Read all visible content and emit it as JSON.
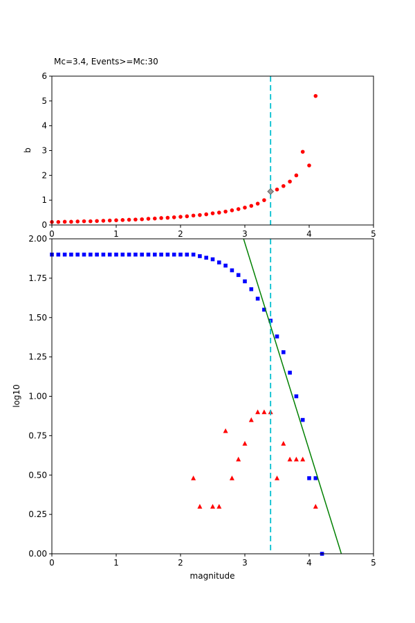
{
  "figure": {
    "title": "Mc=3.4, Events>=Mc:30",
    "xlabel": "magnitude",
    "ylabel_top": "b",
    "ylabel_bottom": "log10",
    "background_color": "#ffffff",
    "colors": {
      "b_curve": "#ff0000",
      "cumulative": "#0000ff",
      "incremental": "#ff0000",
      "fit_line": "#008000",
      "mc_line": "#00bfcf",
      "mc_marker": "#999999"
    }
  },
  "chart_data": [
    {
      "type": "scatter",
      "name": "b-value-vs-cutoff-plot",
      "title": "Mc=3.4, Events>=Mc:30",
      "xlabel": "",
      "ylabel": "b",
      "xlim": [
        0,
        5
      ],
      "ylim": [
        0,
        6
      ],
      "xticks": [
        0,
        1,
        2,
        3,
        4,
        5
      ],
      "yticks": [
        0,
        1,
        2,
        3,
        4,
        5,
        6
      ],
      "xtick_decimals": 0,
      "ytick_decimals": 0,
      "grid": false,
      "vline": {
        "x": 3.4,
        "color": "#00bfcf",
        "style": "dashed",
        "layer": "below"
      },
      "series": [
        {
          "name": "b-values",
          "marker": "circle",
          "color": "#ff0000",
          "x": [
            0,
            0.1,
            0.2,
            0.3,
            0.4,
            0.5,
            0.6,
            0.7,
            0.8,
            0.9,
            1,
            1.1,
            1.2,
            1.3,
            1.4,
            1.5,
            1.6,
            1.7,
            1.8,
            1.9,
            2,
            2.1,
            2.2,
            2.3,
            2.4,
            2.5,
            2.6,
            2.7,
            2.8,
            2.9,
            3,
            3.1,
            3.2,
            3.3,
            3.4,
            3.5,
            3.6,
            3.7,
            3.8,
            3.9,
            4,
            4.1
          ],
          "y": [
            0.12,
            0.12,
            0.13,
            0.13,
            0.14,
            0.15,
            0.15,
            0.16,
            0.17,
            0.18,
            0.19,
            0.2,
            0.21,
            0.22,
            0.23,
            0.25,
            0.26,
            0.28,
            0.29,
            0.31,
            0.33,
            0.35,
            0.38,
            0.4,
            0.43,
            0.47,
            0.5,
            0.54,
            0.59,
            0.64,
            0.7,
            0.77,
            0.86,
            1,
            1.35,
            1.43,
            1.57,
            1.75,
            2,
            2.95,
            2.4,
            5.2
          ]
        },
        {
          "name": "mc-b-marker",
          "marker": "diamond",
          "color": "#999999",
          "x": [
            3.4
          ],
          "y": [
            1.35
          ]
        }
      ]
    },
    {
      "type": "scatter",
      "name": "frequency-magnitude-plot",
      "title": "",
      "xlabel": "magnitude",
      "ylabel": "log10",
      "xlim": [
        0,
        5
      ],
      "ylim": [
        0,
        2
      ],
      "xticks": [
        0,
        1,
        2,
        3,
        4,
        5
      ],
      "yticks": [
        0,
        0.25,
        0.5,
        0.75,
        1,
        1.25,
        1.5,
        1.75,
        2
      ],
      "xtick_decimals": 0,
      "ytick_decimals": 2,
      "grid": false,
      "vline": {
        "x": 3.4,
        "color": "#00bfcf",
        "style": "dashed",
        "layer": "above"
      },
      "series": [
        {
          "name": "cumulative-counts",
          "marker": "square",
          "color": "#0000ff",
          "x": [
            0,
            0.1,
            0.2,
            0.3,
            0.4,
            0.5,
            0.6,
            0.7,
            0.8,
            0.9,
            1,
            1.1,
            1.2,
            1.3,
            1.4,
            1.5,
            1.6,
            1.7,
            1.8,
            1.9,
            2,
            2.1,
            2.2,
            2.3,
            2.4,
            2.5,
            2.6,
            2.7,
            2.8,
            2.9,
            3,
            3.1,
            3.2,
            3.3,
            3.4,
            3.5,
            3.6,
            3.7,
            3.8,
            3.9,
            4,
            4.1,
            4.2
          ],
          "y": [
            1.9,
            1.9,
            1.9,
            1.9,
            1.9,
            1.9,
            1.9,
            1.9,
            1.9,
            1.9,
            1.9,
            1.9,
            1.9,
            1.9,
            1.9,
            1.9,
            1.9,
            1.9,
            1.9,
            1.9,
            1.9,
            1.9,
            1.9,
            1.89,
            1.88,
            1.87,
            1.85,
            1.83,
            1.8,
            1.77,
            1.73,
            1.68,
            1.62,
            1.55,
            1.48,
            1.38,
            1.28,
            1.15,
            1,
            0.85,
            0.48,
            0.48,
            0
          ]
        },
        {
          "name": "bin-counts",
          "marker": "triangle",
          "color": "#ff0000",
          "x": [
            2.2,
            2.3,
            2.5,
            2.6,
            2.7,
            2.8,
            2.9,
            3,
            3.1,
            3.2,
            3.3,
            3.4,
            3.5,
            3.6,
            3.7,
            3.8,
            3.9,
            4.1
          ],
          "y": [
            0.48,
            0.3,
            0.3,
            0.3,
            0.78,
            0.48,
            0.6,
            0.7,
            0.85,
            0.9,
            0.9,
            0.9,
            0.48,
            0.7,
            0.6,
            0.6,
            0.6,
            0.3
          ]
        },
        {
          "name": "gr-fit-line",
          "marker": "line",
          "color": "#008000",
          "x": [
            2.98,
            4.5
          ],
          "y": [
            2,
            0
          ]
        }
      ]
    }
  ]
}
